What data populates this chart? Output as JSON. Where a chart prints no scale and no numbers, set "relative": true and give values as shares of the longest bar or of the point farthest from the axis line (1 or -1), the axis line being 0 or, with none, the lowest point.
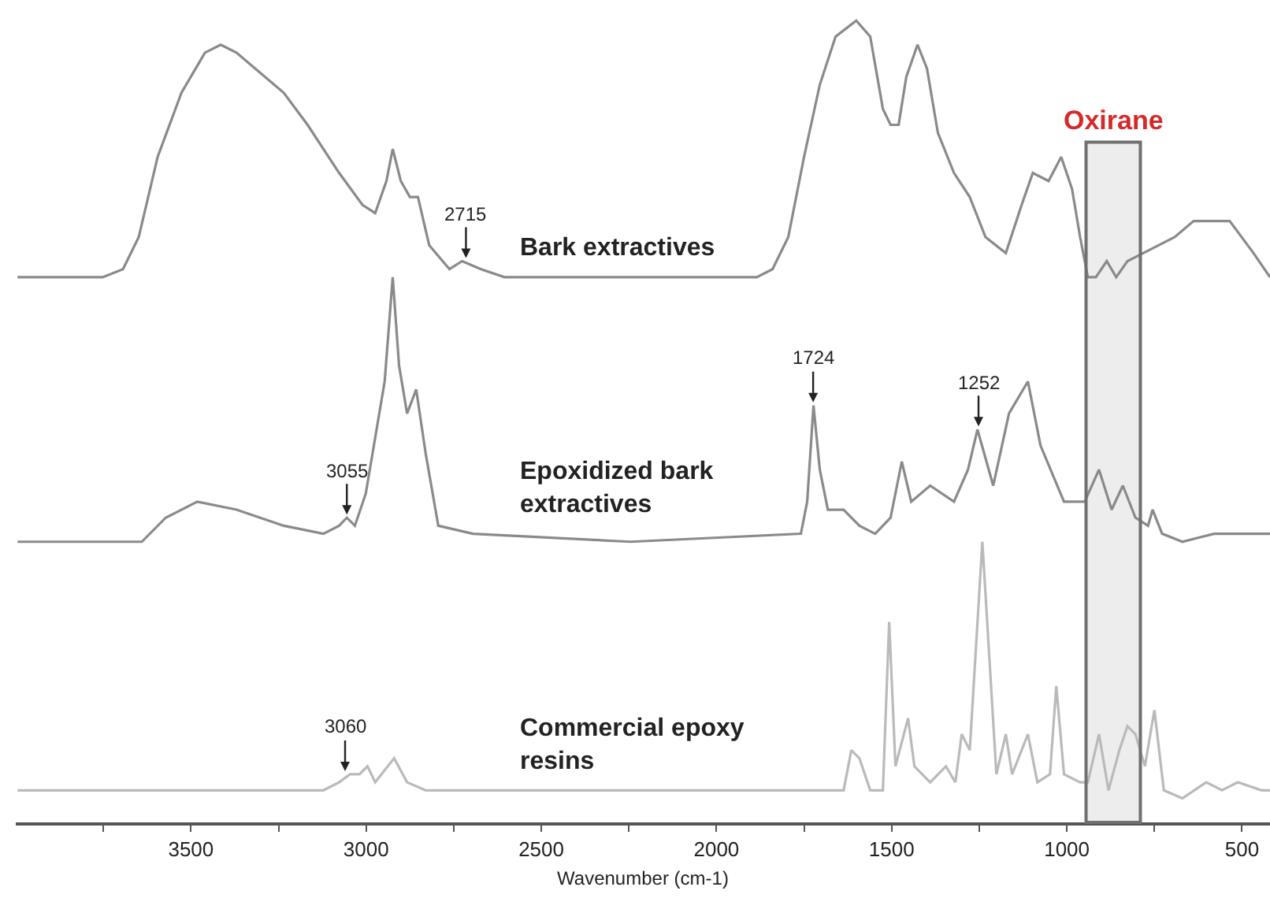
{
  "chart_data": {
    "type": "line",
    "relative": true,
    "xlabel": "Wavenumber (cm-1)",
    "xlim": [
      4000,
      420
    ],
    "xticks": [
      {
        "value": 3750,
        "label": null
      },
      3500,
      {
        "value": 3250,
        "label": null
      },
      3000,
      {
        "value": 2750,
        "label": null
      },
      2500,
      {
        "value": 2250,
        "label": null
      },
      2000,
      {
        "value": 1750,
        "label": null
      },
      1500,
      {
        "value": 1250,
        "label": null
      },
      1000,
      {
        "value": 750,
        "label": null
      },
      500
    ],
    "grid": false,
    "legend": false,
    "tick_labels": "x",
    "series": [
      {
        "name": "Bark extractives",
        "color": "#8a8a8a",
        "x": [
          3995,
          3752,
          3694,
          3649,
          3595,
          3527,
          3460,
          3415,
          3370,
          3316,
          3235,
          3167,
          3077,
          3010,
          2974,
          2942,
          2924,
          2901,
          2875,
          2852,
          2820,
          2762,
          2726,
          2672,
          2605,
          2245,
          1885,
          1840,
          1795,
          1750,
          1705,
          1660,
          1601,
          1561,
          1525,
          1503,
          1480,
          1458,
          1426,
          1399,
          1368,
          1322,
          1277,
          1232,
          1174,
          1129,
          1097,
          1052,
          1016,
          985,
          962,
          940,
          917,
          886,
          859,
          827,
          782,
          692,
          638,
          535,
          467,
          420
        ],
        "values": [
          0.68,
          0.68,
          0.69,
          0.73,
          0.83,
          0.91,
          0.96,
          0.97,
          0.96,
          0.94,
          0.91,
          0.87,
          0.81,
          0.77,
          0.76,
          0.8,
          0.84,
          0.8,
          0.78,
          0.78,
          0.72,
          0.69,
          0.7,
          0.69,
          0.68,
          0.68,
          0.68,
          0.69,
          0.73,
          0.83,
          0.92,
          0.98,
          1.0,
          0.98,
          0.89,
          0.87,
          0.87,
          0.93,
          0.97,
          0.94,
          0.86,
          0.81,
          0.78,
          0.73,
          0.71,
          0.77,
          0.81,
          0.8,
          0.83,
          0.79,
          0.73,
          0.68,
          0.68,
          0.7,
          0.68,
          0.7,
          0.71,
          0.73,
          0.75,
          0.75,
          0.71,
          0.68
        ]
      },
      {
        "name": "Epoxidized bark\nextractives",
        "color": "#8a8a8a",
        "x": [
          3995,
          3640,
          3572,
          3482,
          3370,
          3235,
          3122,
          3077,
          3055,
          3032,
          3001,
          2974,
          2947,
          2924,
          2906,
          2883,
          2857,
          2830,
          2794,
          2695,
          2245,
          1759,
          1741,
          1723,
          1705,
          1682,
          1637,
          1592,
          1547,
          1503,
          1471,
          1444,
          1390,
          1322,
          1282,
          1255,
          1210,
          1165,
          1111,
          1075,
          1008,
          949,
          908,
          872,
          840,
          804,
          768,
          755,
          728,
          670,
          580,
          420
        ],
        "values": [
          0.35,
          0.35,
          0.38,
          0.4,
          0.39,
          0.37,
          0.36,
          0.37,
          0.38,
          0.37,
          0.41,
          0.48,
          0.55,
          0.68,
          0.57,
          0.51,
          0.54,
          0.46,
          0.37,
          0.36,
          0.35,
          0.36,
          0.4,
          0.52,
          0.44,
          0.39,
          0.39,
          0.37,
          0.36,
          0.38,
          0.45,
          0.4,
          0.42,
          0.4,
          0.44,
          0.49,
          0.42,
          0.51,
          0.55,
          0.47,
          0.4,
          0.4,
          0.44,
          0.39,
          0.42,
          0.38,
          0.37,
          0.39,
          0.36,
          0.35,
          0.36,
          0.36
        ]
      },
      {
        "name": "Commercial epoxy\nresins",
        "color": "#bababa",
        "x": [
          3995,
          3640,
          3500,
          3370,
          3122,
          3077,
          3046,
          3019,
          2996,
          2974,
          2920,
          2883,
          2830,
          2245,
          1637,
          1615,
          1592,
          1561,
          1525,
          1507,
          1489,
          1453,
          1435,
          1390,
          1345,
          1318,
          1300,
          1277,
          1241,
          1201,
          1174,
          1156,
          1111,
          1084,
          1048,
          1030,
          1008,
          962,
          940,
          908,
          881,
          850,
          827,
          804,
          777,
          750,
          723,
          670,
          602,
          557,
          512,
          444,
          420
        ],
        "values": [
          0.04,
          0.04,
          0.04,
          0.04,
          0.04,
          0.05,
          0.06,
          0.06,
          0.07,
          0.05,
          0.08,
          0.05,
          0.04,
          0.04,
          0.04,
          0.09,
          0.08,
          0.04,
          0.04,
          0.25,
          0.07,
          0.13,
          0.07,
          0.05,
          0.07,
          0.05,
          0.11,
          0.09,
          0.35,
          0.06,
          0.11,
          0.06,
          0.11,
          0.05,
          0.06,
          0.17,
          0.06,
          0.05,
          0.05,
          0.11,
          0.04,
          0.09,
          0.12,
          0.11,
          0.07,
          0.14,
          0.04,
          0.03,
          0.05,
          0.04,
          0.05,
          0.04,
          0.04
        ]
      }
    ],
    "annotations": [
      {
        "text": "2715",
        "x": 2715,
        "y": 0.7
      },
      {
        "text": "3055",
        "x": 3055,
        "y": 0.38
      },
      {
        "text": "1724",
        "x": 1724,
        "y": 0.52
      },
      {
        "text": "1252",
        "x": 1252,
        "y": 0.49
      },
      {
        "text": "3060",
        "x": 3060,
        "y": 0.06
      }
    ],
    "bands": [
      {
        "axis": "x",
        "from": 945,
        "to": 790,
        "label": "Oxirane",
        "color": "#707070"
      }
    ]
  }
}
